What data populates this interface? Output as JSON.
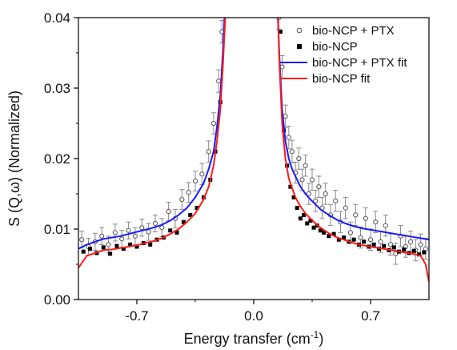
{
  "chart_data": {
    "type": "scatter",
    "title": "",
    "xlabel": "Energy transfer (cm⁻¹)",
    "ylabel": "S (Q,ω) (Normalized)",
    "xlim": [
      -1.05,
      1.05
    ],
    "ylim": [
      0.0,
      0.04
    ],
    "xticks": [
      -0.7,
      0.0,
      0.7
    ],
    "xtick_labels": [
      "-0.7",
      "0.0",
      "0.7"
    ],
    "yticks": [
      0.0,
      0.01,
      0.02,
      0.03,
      0.04
    ],
    "ytick_labels": [
      "0.00",
      "0.01",
      "0.02",
      "0.03",
      "0.04"
    ],
    "grid": false,
    "legend_position": "top-right",
    "series": [
      {
        "name": "bio-NCP + PTX",
        "kind": "points-errorbars",
        "marker": "open-circle",
        "color": "#555555",
        "x": [
          -1.03,
          -0.99,
          -0.95,
          -0.91,
          -0.87,
          -0.83,
          -0.79,
          -0.75,
          -0.71,
          -0.67,
          -0.63,
          -0.59,
          -0.55,
          -0.51,
          -0.47,
          -0.43,
          -0.39,
          -0.35,
          -0.31,
          -0.27,
          -0.24,
          -0.21,
          -0.19,
          0.15,
          0.17,
          0.19,
          0.21,
          0.23,
          0.25,
          0.27,
          0.29,
          0.31,
          0.33,
          0.35,
          0.37,
          0.39,
          0.41,
          0.43,
          0.46,
          0.49,
          0.52,
          0.55,
          0.58,
          0.61,
          0.64,
          0.67,
          0.7,
          0.73,
          0.76,
          0.79,
          0.82,
          0.85,
          0.88,
          0.91,
          0.94,
          0.97,
          1.0,
          1.03
        ],
        "y": [
          0.0085,
          0.0075,
          0.0082,
          0.009,
          0.0078,
          0.0095,
          0.0086,
          0.0098,
          0.009,
          0.0102,
          0.0096,
          0.0108,
          0.0102,
          0.0125,
          0.0115,
          0.0142,
          0.0152,
          0.0168,
          0.0178,
          0.021,
          0.025,
          0.031,
          0.038,
          0.04,
          0.033,
          0.026,
          0.023,
          0.021,
          0.018,
          0.02,
          0.017,
          0.019,
          0.015,
          0.017,
          0.014,
          0.016,
          0.013,
          0.015,
          0.012,
          0.014,
          0.011,
          0.013,
          0.0095,
          0.012,
          0.0088,
          0.0115,
          0.0085,
          0.011,
          0.0082,
          0.0105,
          0.0078,
          0.0065,
          0.009,
          0.0075,
          0.0082,
          0.007,
          0.0078,
          0.0072
        ],
        "err": [
          0.0012,
          0.0012,
          0.0012,
          0.0012,
          0.0012,
          0.0012,
          0.0012,
          0.0012,
          0.0012,
          0.0012,
          0.0012,
          0.0012,
          0.0013,
          0.0013,
          0.0013,
          0.0014,
          0.0014,
          0.0014,
          0.0015,
          0.0015,
          0.0015,
          0.0016,
          0.0016,
          0.0016,
          0.0016,
          0.0016,
          0.0016,
          0.0016,
          0.0015,
          0.0015,
          0.0015,
          0.0015,
          0.0015,
          0.0015,
          0.0015,
          0.0015,
          0.0015,
          0.0015,
          0.0015,
          0.0015,
          0.0015,
          0.0015,
          0.0015,
          0.0015,
          0.0015,
          0.0015,
          0.0015,
          0.0015,
          0.0015,
          0.0015,
          0.0015,
          0.0015,
          0.0015,
          0.0015,
          0.0015,
          0.0015,
          0.0015,
          0.0015
        ]
      },
      {
        "name": "bio-NCP",
        "kind": "points",
        "marker": "filled-square",
        "color": "#000000",
        "x": [
          -1.02,
          -0.98,
          -0.94,
          -0.9,
          -0.86,
          -0.82,
          -0.78,
          -0.74,
          -0.7,
          -0.66,
          -0.62,
          -0.58,
          -0.54,
          -0.5,
          -0.46,
          -0.42,
          -0.38,
          -0.34,
          -0.3,
          -0.26,
          -0.23,
          -0.2,
          0.16,
          0.18,
          0.2,
          0.22,
          0.24,
          0.26,
          0.28,
          0.3,
          0.32,
          0.34,
          0.36,
          0.38,
          0.4,
          0.42,
          0.45,
          0.48,
          0.51,
          0.54,
          0.57,
          0.6,
          0.63,
          0.66,
          0.69,
          0.72,
          0.75,
          0.78,
          0.81,
          0.84,
          0.87,
          0.9,
          0.93,
          0.96,
          0.99,
          1.02
        ],
        "y": [
          0.0068,
          0.0072,
          0.0066,
          0.0074,
          0.0065,
          0.0076,
          0.0072,
          0.0078,
          0.0075,
          0.008,
          0.0078,
          0.0085,
          0.0088,
          0.0098,
          0.0095,
          0.011,
          0.012,
          0.013,
          0.0145,
          0.017,
          0.021,
          0.028,
          0.038,
          0.024,
          0.019,
          0.016,
          0.0145,
          0.013,
          0.0115,
          0.012,
          0.0108,
          0.0112,
          0.0102,
          0.0105,
          0.0098,
          0.0095,
          0.009,
          0.0093,
          0.0085,
          0.0088,
          0.0082,
          0.0085,
          0.0078,
          0.0082,
          0.0075,
          0.0078,
          0.0072,
          0.0076,
          0.007,
          0.0074,
          0.0068,
          0.0071,
          0.0066,
          0.0069,
          0.0064,
          0.0067
        ]
      },
      {
        "name": "bio-NCP + PTX fit",
        "kind": "line",
        "color": "#1a1aff",
        "x": [
          -1.05,
          -1.0,
          -0.95,
          -0.9,
          -0.85,
          -0.8,
          -0.75,
          -0.7,
          -0.65,
          -0.6,
          -0.55,
          -0.5,
          -0.45,
          -0.4,
          -0.35,
          -0.3,
          -0.27,
          -0.24,
          -0.22,
          -0.2,
          -0.185,
          -0.175,
          0.145,
          0.155,
          0.17,
          0.19,
          0.21,
          0.23,
          0.25,
          0.28,
          0.31,
          0.34,
          0.37,
          0.4,
          0.45,
          0.5,
          0.55,
          0.6,
          0.65,
          0.7,
          0.75,
          0.8,
          0.85,
          0.9,
          0.95,
          1.0,
          1.05
        ],
        "y": [
          0.0072,
          0.0078,
          0.0082,
          0.0086,
          0.0088,
          0.009,
          0.0093,
          0.0096,
          0.0099,
          0.0102,
          0.0106,
          0.0112,
          0.012,
          0.013,
          0.0145,
          0.0165,
          0.0185,
          0.021,
          0.0245,
          0.029,
          0.035,
          0.04,
          0.04,
          0.034,
          0.027,
          0.0225,
          0.02,
          0.0185,
          0.0175,
          0.016,
          0.015,
          0.0142,
          0.0135,
          0.0128,
          0.012,
          0.0113,
          0.0108,
          0.0104,
          0.0101,
          0.0099,
          0.0097,
          0.0095,
          0.0093,
          0.0091,
          0.0089,
          0.0087,
          0.0085
        ]
      },
      {
        "name": "bio-NCP fit",
        "kind": "line",
        "color": "#ff1a1a",
        "x": [
          -1.05,
          -1.0,
          -0.95,
          -0.9,
          -0.85,
          -0.8,
          -0.75,
          -0.7,
          -0.65,
          -0.6,
          -0.55,
          -0.5,
          -0.45,
          -0.4,
          -0.35,
          -0.3,
          -0.27,
          -0.24,
          -0.22,
          -0.2,
          -0.185,
          -0.17,
          0.145,
          0.155,
          0.17,
          0.19,
          0.21,
          0.23,
          0.25,
          0.28,
          0.31,
          0.34,
          0.37,
          0.4,
          0.45,
          0.5,
          0.55,
          0.6,
          0.65,
          0.7,
          0.75,
          0.8,
          0.85,
          0.9,
          0.95,
          1.0,
          1.03,
          1.05
        ],
        "y": [
          0.0045,
          0.0062,
          0.0066,
          0.007,
          0.0071,
          0.0073,
          0.0075,
          0.0077,
          0.008,
          0.0083,
          0.0087,
          0.0093,
          0.01,
          0.011,
          0.0122,
          0.0142,
          0.016,
          0.019,
          0.0225,
          0.027,
          0.033,
          0.04,
          0.04,
          0.033,
          0.025,
          0.02,
          0.0172,
          0.0158,
          0.0145,
          0.0132,
          0.0122,
          0.0115,
          0.0108,
          0.0102,
          0.0094,
          0.0088,
          0.0084,
          0.008,
          0.0077,
          0.0075,
          0.0073,
          0.0071,
          0.0069,
          0.0067,
          0.0065,
          0.0062,
          0.005,
          0.0025
        ]
      }
    ]
  }
}
